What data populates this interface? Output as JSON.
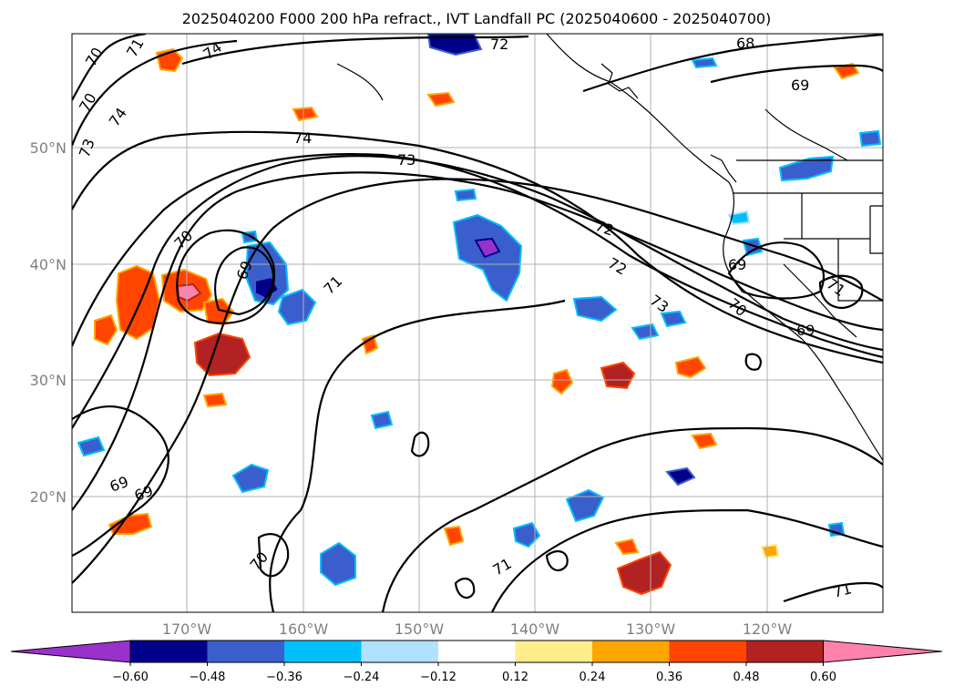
{
  "title": "2025040200 F000 200 hPa refract., IVT Landfall PC (2025040600 - 2025040700)",
  "latitude_labels": [
    "50°N",
    "40°N",
    "30°N",
    "20°N"
  ],
  "longitude_labels": [
    "170°W",
    "160°W",
    "150°W",
    "140°W",
    "130°W",
    "120°W"
  ],
  "colorbar": {
    "tick_labels": [
      "−0.60",
      "−0.48",
      "−0.36",
      "−0.24",
      "−0.12",
      "0.12",
      "0.24",
      "0.36",
      "0.48",
      "0.60"
    ],
    "colors": [
      "#9932cc",
      "#00008b",
      "#3a5fcd",
      "#00bfff",
      "#b0e2ff",
      "#ffffff",
      "#ffec8b",
      "#ffa500",
      "#ff4500",
      "#b22222",
      "#ff82ab"
    ]
  },
  "contour_labels": [
    "70",
    "71",
    "72",
    "73",
    "74",
    "74",
    "73",
    "74",
    "73",
    "72",
    "72",
    "71",
    "69",
    "70",
    "69",
    "69",
    "70",
    "71",
    "72",
    "73",
    "68",
    "69",
    "69",
    "71",
    "70",
    "69",
    "71",
    "70",
    "71"
  ],
  "colors": {
    "coastline": "#000000",
    "gridline": "#b0b0b0",
    "contour": "#000000"
  }
}
